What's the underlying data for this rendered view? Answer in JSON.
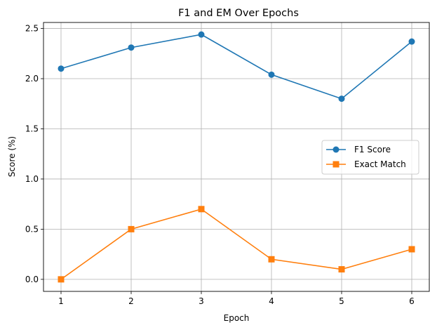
{
  "chart_data": {
    "type": "line",
    "title": "F1 and EM Over Epochs",
    "xlabel": "Epoch",
    "ylabel": "Score (%)",
    "x": [
      1,
      2,
      3,
      4,
      5,
      6
    ],
    "xlim": [
      0.75,
      6.25
    ],
    "ylim": [
      -0.12,
      2.56
    ],
    "xticks": [
      "1",
      "2",
      "3",
      "4",
      "5",
      "6"
    ],
    "yticks": [
      "0.0",
      "0.5",
      "1.0",
      "1.5",
      "2.0",
      "2.5"
    ],
    "grid": true,
    "legend_position": "center-right",
    "series": [
      {
        "name": "F1 Score",
        "color": "#1f77b4",
        "marker": "circle",
        "values": [
          2.1,
          2.31,
          2.44,
          2.04,
          1.8,
          2.37
        ]
      },
      {
        "name": "Exact Match",
        "color": "#ff7f0e",
        "marker": "square",
        "values": [
          0.0,
          0.5,
          0.7,
          0.2,
          0.1,
          0.3
        ]
      }
    ]
  }
}
